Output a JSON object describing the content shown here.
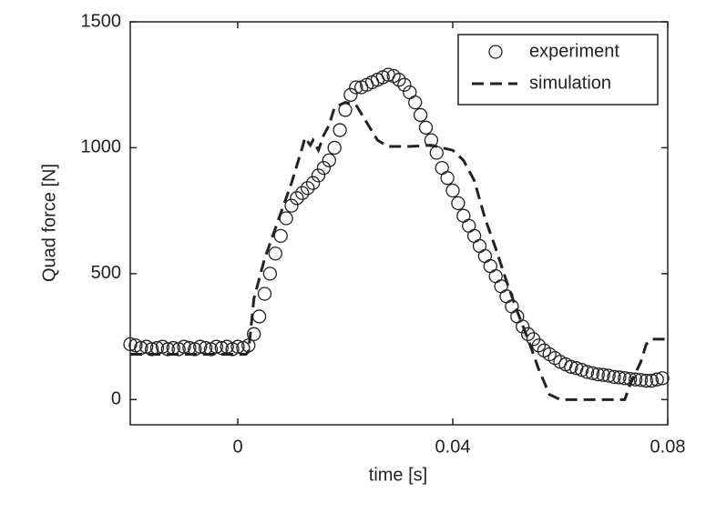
{
  "chart_data": {
    "type": "line",
    "xlabel": "time [s]",
    "ylabel": "Quad force [N]",
    "xlim": [
      -0.02,
      0.08
    ],
    "xticks": [
      0,
      0.04,
      0.08
    ],
    "ylim": [
      -100,
      1500
    ],
    "yticks": [
      0,
      500,
      1000,
      1500
    ],
    "legend": "upper right",
    "series": [
      {
        "name": "experiment",
        "color": "#222222",
        "marker": "circle",
        "x": [
          -0.02,
          -0.019,
          -0.018,
          -0.017,
          -0.016,
          -0.015,
          -0.014,
          -0.013,
          -0.012,
          -0.011,
          -0.01,
          -0.009,
          -0.008,
          -0.007,
          -0.006,
          -0.005,
          -0.004,
          -0.003,
          -0.002,
          -0.001,
          0,
          0.001,
          0.002,
          0.003,
          0.004,
          0.005,
          0.006,
          0.007,
          0.008,
          0.009,
          0.01,
          0.011,
          0.012,
          0.013,
          0.014,
          0.015,
          0.016,
          0.017,
          0.018,
          0.019,
          0.02,
          0.021,
          0.022,
          0.023,
          0.024,
          0.025,
          0.026,
          0.027,
          0.028,
          0.029,
          0.03,
          0.031,
          0.032,
          0.033,
          0.034,
          0.035,
          0.036,
          0.037,
          0.038,
          0.039,
          0.04,
          0.041,
          0.042,
          0.043,
          0.044,
          0.045,
          0.046,
          0.047,
          0.048,
          0.049,
          0.05,
          0.051,
          0.052,
          0.053,
          0.054,
          0.055,
          0.056,
          0.057,
          0.058,
          0.059,
          0.06,
          0.061,
          0.062,
          0.063,
          0.064,
          0.065,
          0.066,
          0.067,
          0.068,
          0.069,
          0.07,
          0.071,
          0.072,
          0.073,
          0.074,
          0.075,
          0.076,
          0.077,
          0.078,
          0.079
        ],
        "values": [
          220,
          215,
          205,
          210,
          200,
          205,
          210,
          200,
          205,
          200,
          210,
          205,
          200,
          210,
          205,
          200,
          210,
          205,
          210,
          200,
          210,
          205,
          215,
          260,
          330,
          420,
          500,
          580,
          650,
          720,
          770,
          800,
          820,
          840,
          860,
          890,
          920,
          950,
          1000,
          1070,
          1150,
          1210,
          1240,
          1240,
          1250,
          1260,
          1270,
          1280,
          1290,
          1285,
          1270,
          1250,
          1220,
          1180,
          1130,
          1080,
          1030,
          980,
          920,
          880,
          830,
          780,
          730,
          690,
          650,
          610,
          570,
          530,
          490,
          450,
          410,
          370,
          330,
          290,
          260,
          240,
          215,
          195,
          180,
          165,
          150,
          140,
          130,
          125,
          118,
          110,
          105,
          100,
          98,
          95,
          90,
          88,
          85,
          82,
          80,
          78,
          75,
          75,
          80,
          85
        ]
      },
      {
        "name": "simulation",
        "color": "#222222",
        "linestyle": "dashed",
        "x": [
          -0.02,
          0.0015,
          0.002,
          0.003,
          0.005,
          0.008,
          0.01,
          0.012,
          0.0125,
          0.0135,
          0.014,
          0.015,
          0.016,
          0.017,
          0.018,
          0.02,
          0.022,
          0.024,
          0.026,
          0.028,
          0.032,
          0.036,
          0.04,
          0.042,
          0.044,
          0.046,
          0.048,
          0.05,
          0.052,
          0.054,
          0.056,
          0.058,
          0.06,
          0.072,
          0.073,
          0.075,
          0.076,
          0.077,
          0.08
        ],
        "values": [
          180,
          180,
          190,
          400,
          560,
          740,
          860,
          1000,
          1040,
          1010,
          1030,
          990,
          1050,
          1090,
          1160,
          1180,
          1170,
          1100,
          1030,
          1005,
          1005,
          1010,
          990,
          950,
          870,
          720,
          600,
          470,
          350,
          240,
          120,
          20,
          0,
          0,
          60,
          150,
          220,
          240,
          240
        ]
      }
    ]
  }
}
